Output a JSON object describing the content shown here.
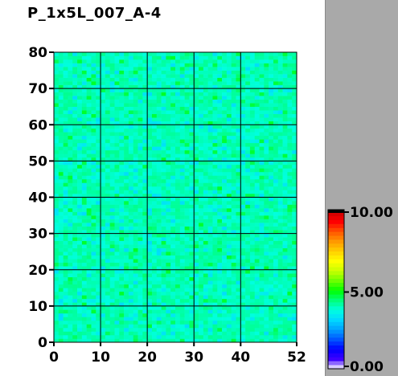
{
  "title": "P_1x5L_007_A-4",
  "chart_data": {
    "type": "heatmap",
    "title": "P_1x5L_007_A-4",
    "xlim": [
      0,
      52
    ],
    "ylim": [
      0,
      80
    ],
    "x_ticks": [
      "0",
      "10",
      "20",
      "30",
      "40",
      "52"
    ],
    "y_ticks": [
      "0",
      "10",
      "20",
      "30",
      "40",
      "50",
      "60",
      "70",
      "80"
    ],
    "grid": true,
    "colorbar": {
      "range": [
        0.0,
        10.0
      ],
      "labels": [
        "10.00",
        "5.00",
        "0.00"
      ],
      "colormap": [
        "#ffffff",
        "#3d00ff",
        "#0000ff",
        "#0055ff",
        "#00a0ff",
        "#00d8ff",
        "#00ffe0",
        "#00ff7a",
        "#00ff00",
        "#6cff00",
        "#c8ff00",
        "#ffff00",
        "#ffd000",
        "#ff9900",
        "#ff5500",
        "#ff0000",
        "#cc0000"
      ]
    },
    "value_summary": {
      "typical_value": 4.0,
      "min_approx": 3.2,
      "max_approx": 4.8
    }
  }
}
